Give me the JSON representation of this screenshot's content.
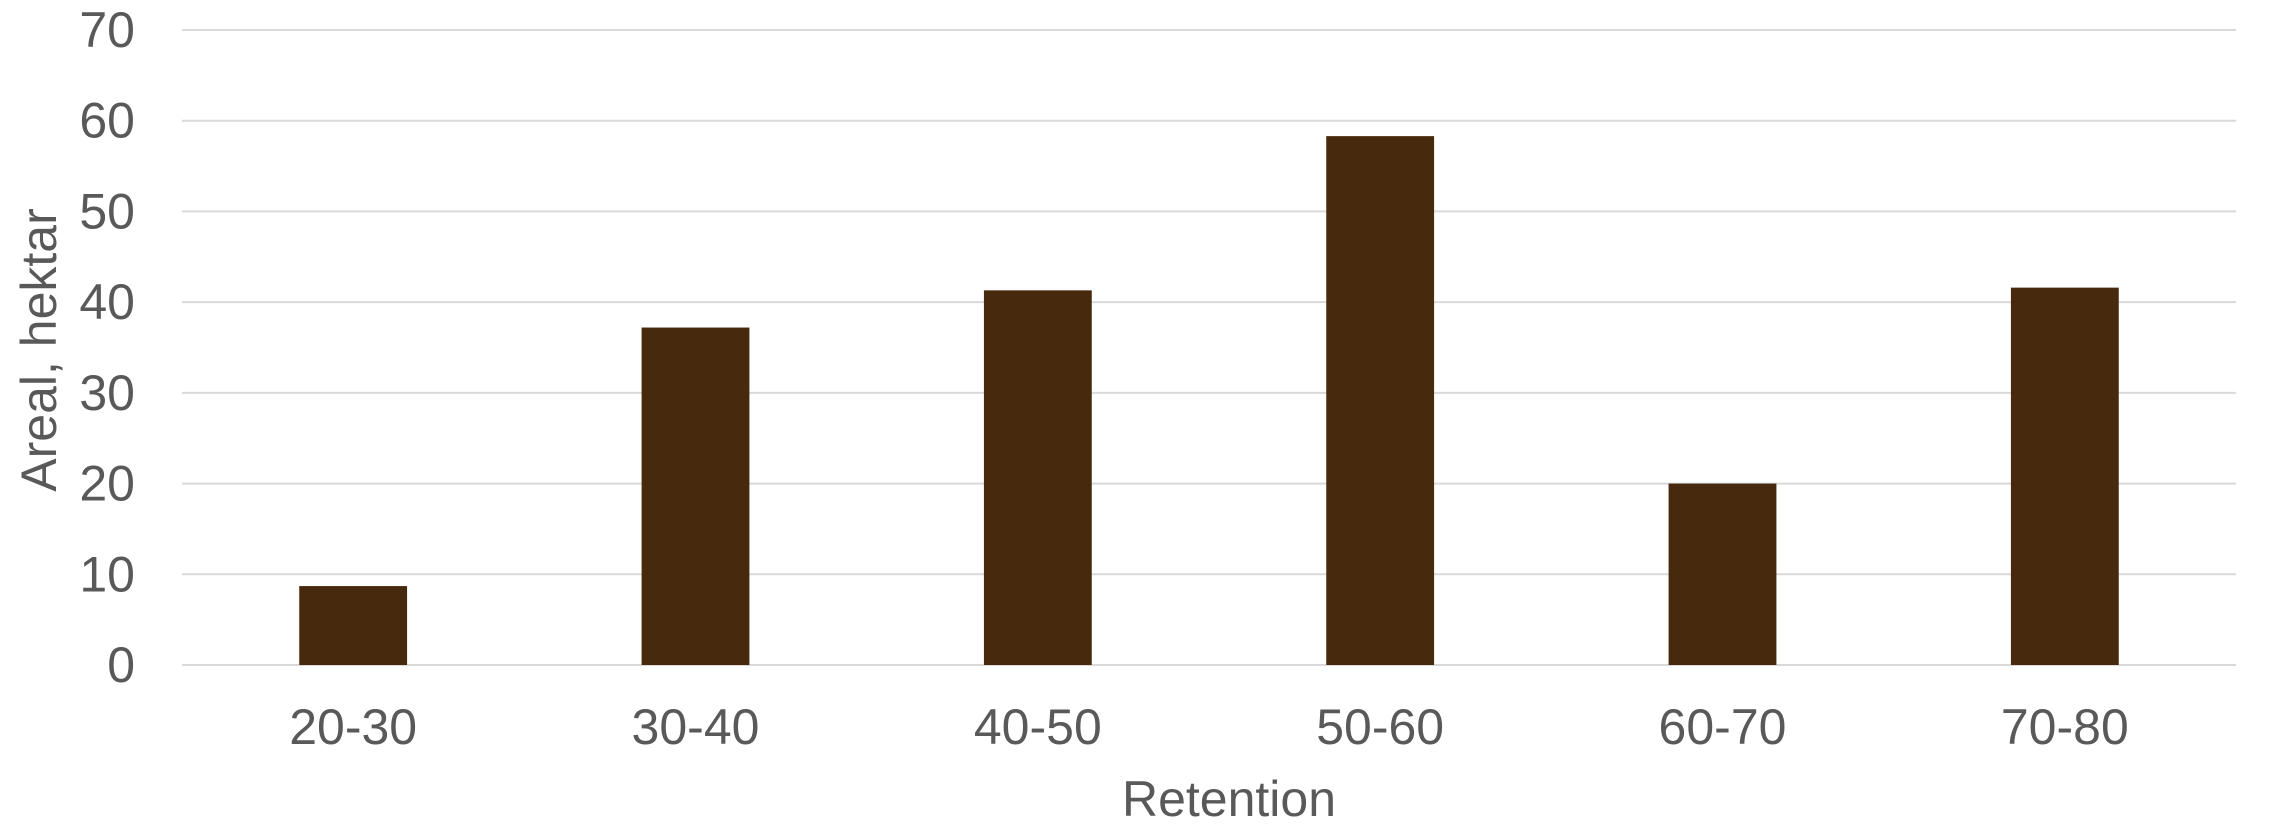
{
  "chart_data": {
    "type": "bar",
    "title": "",
    "xlabel": "Retention",
    "ylabel": "Areal, hektar",
    "categories": [
      "20-30",
      "30-40",
      "40-50",
      "50-60",
      "60-70",
      "70-80"
    ],
    "values": [
      8.7,
      37.2,
      41.3,
      58.3,
      20.0,
      41.6
    ],
    "ylim": [
      0,
      70
    ],
    "yticks": [
      0,
      10,
      20,
      30,
      40,
      50,
      60,
      70
    ],
    "grid": true,
    "legend": "none",
    "colors": {
      "bar": "#47290d",
      "grid": "#d9d9d9",
      "text": "#595959"
    }
  }
}
